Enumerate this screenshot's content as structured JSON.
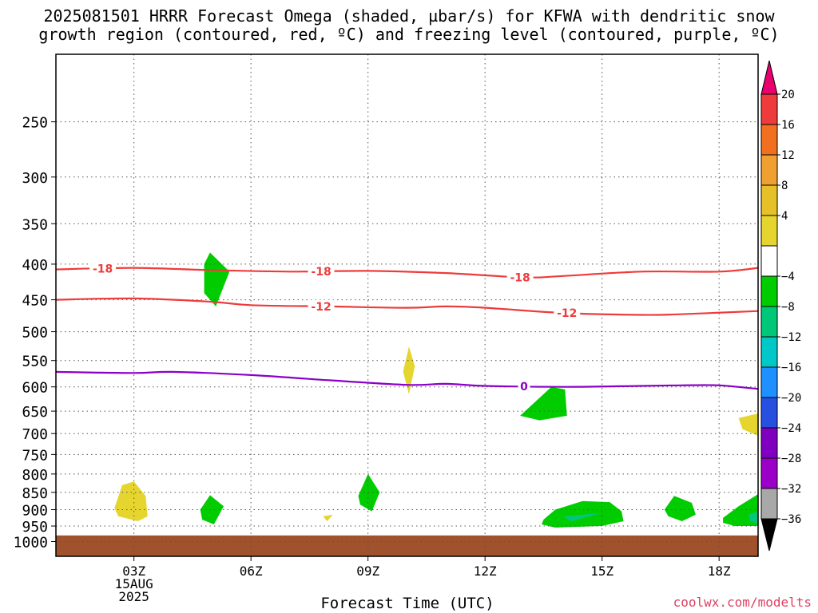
{
  "title_line1": "2025081501 HRRR Forecast Omega (shaded, µbar/s) for KFWA with dendritic snow",
  "title_line2": "growth region (contoured, red, ºC) and freezing level (contoured, purple, ºC)",
  "credit": "coolwx.com/modelts",
  "chart_data": {
    "type": "time-height cross section",
    "xlabel": "Forecast Time (UTC)",
    "x_ticks": [
      {
        "hour": 3,
        "label": "03Z",
        "sub": [
          "15AUG",
          "2025"
        ]
      },
      {
        "hour": 6,
        "label": "06Z"
      },
      {
        "hour": 9,
        "label": "09Z"
      },
      {
        "hour": 12,
        "label": "12Z"
      },
      {
        "hour": 15,
        "label": "15Z"
      },
      {
        "hour": 18,
        "label": "18Z"
      }
    ],
    "xlim": [
      1,
      19
    ],
    "ylim_hPa": [
      1050,
      200
    ],
    "y_scale": "log-pressure",
    "y_ticks": [
      250,
      300,
      350,
      400,
      450,
      500,
      550,
      600,
      650,
      700,
      750,
      800,
      850,
      900,
      950,
      1000
    ],
    "grid": "dotted",
    "ground_level_hPa": 980,
    "ground_color": "#a0522d",
    "contours": [
      {
        "name": "-18",
        "color": "#ee3b3b",
        "labels": [
          {
            "hour": 2.2
          },
          {
            "hour": 7.8
          },
          {
            "hour": 12.9
          }
        ],
        "points": [
          [
            1,
            407
          ],
          [
            3,
            405
          ],
          [
            5,
            408
          ],
          [
            7,
            410
          ],
          [
            9,
            409
          ],
          [
            11,
            412
          ],
          [
            13,
            418
          ],
          [
            14,
            416
          ],
          [
            16,
            410
          ],
          [
            18,
            410
          ],
          [
            19,
            405
          ]
        ]
      },
      {
        "name": "-12",
        "color": "#ee3b3b",
        "labels": [
          {
            "hour": 7.8
          },
          {
            "hour": 14.1
          }
        ],
        "points": [
          [
            1,
            450
          ],
          [
            3,
            448
          ],
          [
            5,
            453
          ],
          [
            6,
            458
          ],
          [
            8,
            460
          ],
          [
            10,
            462
          ],
          [
            11,
            460
          ],
          [
            12,
            462
          ],
          [
            14,
            470
          ],
          [
            16,
            473
          ],
          [
            17,
            472
          ],
          [
            19,
            467
          ]
        ]
      },
      {
        "name": "0",
        "color": "#8b00c8",
        "labels": [
          {
            "hour": 13
          }
        ],
        "points": [
          [
            1,
            571
          ],
          [
            3,
            573
          ],
          [
            4,
            571
          ],
          [
            6,
            577
          ],
          [
            8,
            587
          ],
          [
            10,
            596
          ],
          [
            11,
            594
          ],
          [
            12,
            598
          ],
          [
            14,
            600
          ],
          [
            16,
            598
          ],
          [
            17,
            597
          ],
          [
            18,
            597
          ],
          [
            19,
            604
          ]
        ]
      }
    ],
    "omega_regions": [
      {
        "value": -6,
        "color": "#00cc00",
        "polygon": [
          [
            4.8,
            400
          ],
          [
            4.95,
            385
          ],
          [
            5.45,
            410
          ],
          [
            5.1,
            460
          ],
          [
            4.8,
            440
          ]
        ]
      },
      {
        "value": 6,
        "color": "#e5d52e",
        "polygon": [
          [
            10,
            540
          ],
          [
            10.05,
            525
          ],
          [
            10.2,
            560
          ],
          [
            10.05,
            615
          ],
          [
            9.9,
            570
          ]
        ]
      },
      {
        "value": -6,
        "color": "#00cc00",
        "polygon": [
          [
            12.9,
            660
          ],
          [
            13.7,
            600
          ],
          [
            14.05,
            605
          ],
          [
            14.1,
            660
          ],
          [
            13.4,
            670
          ]
        ]
      },
      {
        "value": 6,
        "color": "#e5d52e",
        "polygon": [
          [
            2.5,
            895
          ],
          [
            2.7,
            830
          ],
          [
            3,
            820
          ],
          [
            3.3,
            860
          ],
          [
            3.35,
            920
          ],
          [
            3.1,
            935
          ],
          [
            2.6,
            920
          ]
        ]
      },
      {
        "value": -6,
        "color": "#00cc00",
        "polygon": [
          [
            4.7,
            900
          ],
          [
            4.95,
            858
          ],
          [
            5.3,
            890
          ],
          [
            5.05,
            945
          ],
          [
            4.75,
            930
          ]
        ]
      },
      {
        "value": 6,
        "color": "#e5d52e",
        "polygon": [
          [
            7.85,
            920
          ],
          [
            8.1,
            915
          ],
          [
            7.95,
            935
          ]
        ]
      },
      {
        "value": -6,
        "color": "#00cc00",
        "polygon": [
          [
            8.75,
            860
          ],
          [
            9,
            800
          ],
          [
            9.3,
            850
          ],
          [
            9.1,
            905
          ],
          [
            8.8,
            885
          ]
        ]
      },
      {
        "value": -6,
        "color": "#00cc00",
        "polygon": [
          [
            13.5,
            930
          ],
          [
            13.8,
            900
          ],
          [
            14.5,
            875
          ],
          [
            15.2,
            878
          ],
          [
            15.5,
            905
          ],
          [
            15.55,
            935
          ],
          [
            15,
            950
          ],
          [
            13.8,
            955
          ],
          [
            13.45,
            945
          ]
        ]
      },
      {
        "value": -10,
        "color": "#00c878",
        "polygon": [
          [
            14,
            920
          ],
          [
            15,
            910
          ],
          [
            14.2,
            935
          ]
        ]
      },
      {
        "value": -6,
        "color": "#00cc00",
        "polygon": [
          [
            16.6,
            900
          ],
          [
            16.85,
            860
          ],
          [
            17.3,
            880
          ],
          [
            17.4,
            915
          ],
          [
            17.05,
            935
          ],
          [
            16.7,
            920
          ]
        ]
      },
      {
        "value": -6,
        "color": "#00cc00",
        "polygon": [
          [
            18.1,
            925
          ],
          [
            18.5,
            890
          ],
          [
            19,
            855
          ],
          [
            19,
            950
          ],
          [
            18.4,
            950
          ],
          [
            18.1,
            940
          ]
        ]
      },
      {
        "value": -10,
        "color": "#00c878",
        "polygon": [
          [
            18.75,
            915
          ],
          [
            19,
            905
          ],
          [
            19,
            945
          ],
          [
            18.8,
            935
          ]
        ]
      },
      {
        "value": 6,
        "color": "#e5d52e",
        "polygon": [
          [
            18.5,
            665
          ],
          [
            19,
            655
          ],
          [
            19,
            705
          ],
          [
            18.6,
            690
          ]
        ]
      }
    ],
    "colorbar": {
      "labels": [
        "20",
        "16",
        "12",
        "8",
        "4",
        "−4",
        "−8",
        "−12",
        "−16",
        "−20",
        "−24",
        "−28",
        "−32",
        "−36"
      ],
      "colors": [
        "#e8006e",
        "#ee3b3b",
        "#f07020",
        "#f0a030",
        "#e5c028",
        "#e5d52e",
        "#ffffff",
        "#00cc00",
        "#00c878",
        "#00c8c8",
        "#1e90ff",
        "#2850e0",
        "#8000c0",
        "#9b00c8",
        "#a8a8a8",
        "#000000"
      ]
    }
  }
}
